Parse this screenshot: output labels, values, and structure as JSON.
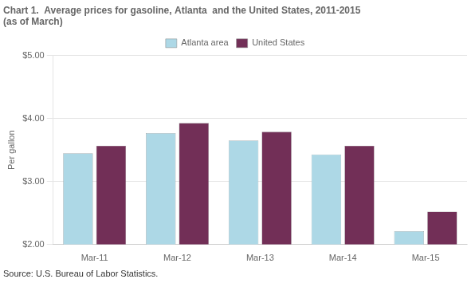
{
  "chart_data": {
    "type": "bar",
    "title": "Chart 1.  Average prices for gasoline, Atlanta  and the United States, 2011-2015",
    "subtitle": "(as of March)",
    "ylabel": "Per gallon",
    "source": "Source: U.S. Bureau of Labor Statistics.",
    "categories": [
      "Mar-11",
      "Mar-12",
      "Mar-13",
      "Mar-14",
      "Mar-15"
    ],
    "series": [
      {
        "name": "Atlanta area",
        "color": "#ADD8E6",
        "values": [
          3.45,
          3.77,
          3.65,
          3.43,
          2.21
        ]
      },
      {
        "name": "United States",
        "color": "#722F57",
        "values": [
          3.57,
          3.93,
          3.79,
          3.57,
          2.52
        ]
      }
    ],
    "ylim": [
      2.0,
      5.0
    ],
    "yticks": [
      {
        "value": 2.0,
        "label": "$2.00"
      },
      {
        "value": 3.0,
        "label": "$3.00"
      },
      {
        "value": 4.0,
        "label": "$4.00"
      },
      {
        "value": 5.0,
        "label": "$5.00"
      }
    ],
    "grid": true,
    "legend": "top"
  }
}
